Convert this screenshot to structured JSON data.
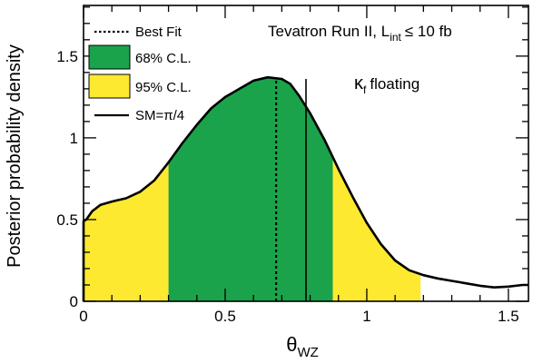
{
  "chart_data": {
    "type": "area",
    "xlabel_main": "θ",
    "xlabel_sub": "WZ",
    "ylabel": "Posterior probability density",
    "xlim": [
      0,
      1.5708
    ],
    "ylim": [
      0,
      1.81
    ],
    "x_ticks": [
      {
        "value": 0,
        "label": "0"
      },
      {
        "value": 0.5,
        "label": "0.5"
      },
      {
        "value": 1,
        "label": "1"
      },
      {
        "value": 1.5,
        "label": "1.5"
      }
    ],
    "y_ticks": [
      {
        "value": 0,
        "label": "0"
      },
      {
        "value": 0.5,
        "label": "0.5"
      },
      {
        "value": 1,
        "label": "1"
      },
      {
        "value": 1.5,
        "label": "1.5"
      }
    ],
    "x_minor_step": 0.1,
    "y_minor_step": 0.1,
    "curve": {
      "x": [
        0,
        0.01,
        0.03,
        0.06,
        0.1,
        0.15,
        0.2,
        0.25,
        0.3,
        0.35,
        0.4,
        0.45,
        0.5,
        0.55,
        0.6,
        0.65,
        0.7,
        0.73,
        0.76,
        0.8,
        0.85,
        0.9,
        0.95,
        1.0,
        1.05,
        1.1,
        1.15,
        1.2,
        1.25,
        1.3,
        1.35,
        1.4,
        1.45,
        1.5,
        1.55,
        1.57
      ],
      "y": [
        0.49,
        0.5,
        0.55,
        0.59,
        0.61,
        0.63,
        0.67,
        0.74,
        0.85,
        0.97,
        1.08,
        1.18,
        1.25,
        1.3,
        1.35,
        1.37,
        1.36,
        1.33,
        1.26,
        1.15,
        0.99,
        0.81,
        0.64,
        0.48,
        0.35,
        0.25,
        0.19,
        0.16,
        0.14,
        0.125,
        0.11,
        0.095,
        0.085,
        0.09,
        0.1,
        0.1
      ]
    },
    "bands": [
      {
        "name": "95% C.L.",
        "from": 0,
        "to": 0.3,
        "color": "#fde92f"
      },
      {
        "name": "68% C.L.",
        "from": 0.3,
        "to": 0.88,
        "color": "#1aa34a"
      },
      {
        "name": "95% C.L.",
        "from": 0.88,
        "to": 1.19,
        "color": "#fde92f"
      }
    ],
    "best_fit_x": 0.68,
    "sm_value_x": 0.7854,
    "legend": [
      {
        "label": "Best Fit",
        "style": "dotted-line"
      },
      {
        "label": "68% C.L.",
        "style": "box",
        "color": "#1aa34a"
      },
      {
        "label": "95% C.L.",
        "style": "box",
        "color": "#fde92f"
      },
      {
        "label": "SM=π/4",
        "style": "solid-line"
      }
    ],
    "legend_position": "top-left",
    "annotation_run": "Tevatron Run II, L",
    "annotation_run_sub": "int",
    "annotation_run_tail": "≤ 10 fb",
    "annotation_kappa": "κ",
    "annotation_kappa_sub": "f",
    "annotation_kappa_tail": "floating",
    "colors": {
      "green": "#1aa34a",
      "yellow": "#fde92f",
      "line": "#000000"
    },
    "grid": false
  }
}
